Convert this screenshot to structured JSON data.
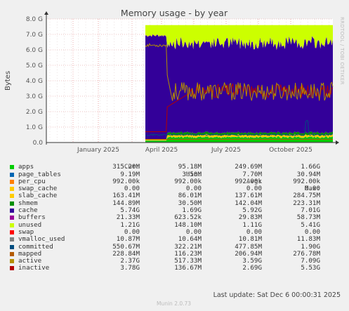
{
  "chart_data": {
    "type": "area",
    "title": "Memory usage - by year",
    "ylabel": "Bytes",
    "side_label": "RRDTOOL / TOBI OETIKER",
    "x_ticks": [
      "January 2025",
      "April 2025",
      "July 2025",
      "October 2025"
    ],
    "y_ticks": [
      "0.0",
      "1.0 G",
      "2.0 G",
      "3.0 G",
      "4.0 G",
      "5.0 G",
      "6.0 G",
      "7.0 G",
      "8.0 G"
    ],
    "ylim_gb": [
      0,
      8
    ],
    "grid": true,
    "series": [
      {
        "name": "apps",
        "color": "#00cc00",
        "cur": "315.20M",
        "min": "95.18M",
        "avg": "249.69M",
        "max": "1.66G"
      },
      {
        "name": "page_tables",
        "color": "#0066b3",
        "cur": "9.19M",
        "min": "3.50M",
        "avg": "7.70M",
        "max": "30.94M"
      },
      {
        "name": "per_cpu",
        "color": "#ff8000",
        "cur": "992.00k",
        "min": "992.00k",
        "avg": "992.00k",
        "max": "992.00k"
      },
      {
        "name": "swap_cache",
        "color": "#ffcc00",
        "cur": "0.00",
        "min": "0.00",
        "avg": "0.00",
        "max": "0.00"
      },
      {
        "name": "slab_cache",
        "color": "#ffcc00",
        "cur": "163.41M",
        "min": "86.01M",
        "avg": "137.61M",
        "max": "284.75M"
      },
      {
        "name": "shmem",
        "color": "#008f00",
        "cur": "144.89M",
        "min": "30.50M",
        "avg": "142.04M",
        "max": "223.31M"
      },
      {
        "name": "cache",
        "color": "#330099",
        "cur": "5.74G",
        "min": "1.69G",
        "avg": "5.92G",
        "max": "7.01G"
      },
      {
        "name": "buffers",
        "color": "#990099",
        "cur": "21.33M",
        "min": "623.52k",
        "avg": "29.83M",
        "max": "58.73M"
      },
      {
        "name": "unused",
        "color": "#ccff00",
        "cur": "1.21G",
        "min": "148.10M",
        "avg": "1.11G",
        "max": "5.41G"
      },
      {
        "name": "swap",
        "color": "#ff0000",
        "cur": "0.00",
        "min": "0.00",
        "avg": "0.00",
        "max": "0.00"
      },
      {
        "name": "vmalloc_used",
        "color": "#808080",
        "cur": "10.87M",
        "min": "10.64M",
        "avg": "10.81M",
        "max": "11.83M"
      },
      {
        "name": "committed",
        "color": "#004d80",
        "cur": "550.67M",
        "min": "322.21M",
        "avg": "477.85M",
        "max": "1.90G"
      },
      {
        "name": "mapped",
        "color": "#b35a00",
        "cur": "228.84M",
        "min": "116.23M",
        "avg": "206.94M",
        "max": "276.78M"
      },
      {
        "name": "active",
        "color": "#b38f00",
        "cur": "2.37G",
        "min": "517.33M",
        "avg": "3.59G",
        "max": "7.09G"
      },
      {
        "name": "inactive",
        "color": "#b30000",
        "cur": "3.78G",
        "min": "136.67M",
        "avg": "2.69G",
        "max": "5.53G"
      }
    ]
  },
  "legend_headers": {
    "cur": "Cur:",
    "min": "Min:",
    "avg": "Avg:",
    "max": "Max:"
  },
  "last_update": "Last update: Sat Dec  6 00:00:31 2025",
  "footer": "Munin 2.0.73"
}
